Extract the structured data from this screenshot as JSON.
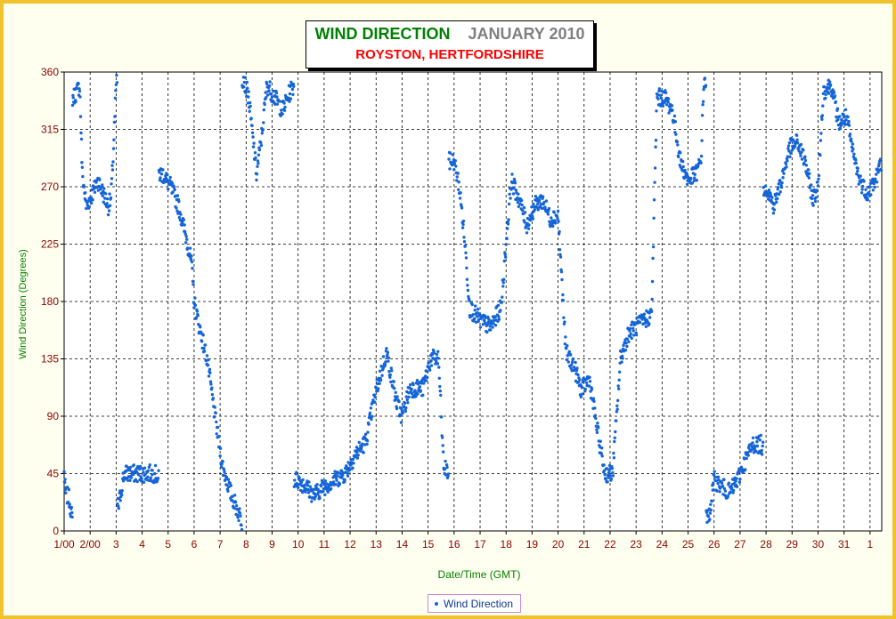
{
  "title": {
    "main": "WIND DIRECTION",
    "period": "JANUARY 2010",
    "location": "ROYSTON, HERTFORDSHIRE"
  },
  "colors": {
    "frame": "#f2c12e",
    "background": "#fffff0",
    "series": "#1565d8",
    "axis_text": "#8b0000",
    "title_green": "#008000",
    "title_gray": "#808080",
    "title_red": "#ff0000"
  },
  "chart_data": {
    "type": "scatter",
    "title": "WIND DIRECTION",
    "xlabel": "Date/Time (GMT)",
    "ylabel": "Wind Direction (Degrees)",
    "ylim": [
      0,
      360
    ],
    "xlim": [
      0,
      31.45
    ],
    "grid": true,
    "legend": "bottom",
    "y_ticks": [
      "0",
      "45",
      "90",
      "135",
      "180",
      "225",
      "270",
      "315",
      "360"
    ],
    "x_ticks": [
      "1/00",
      "2/00",
      "3",
      "4",
      "5",
      "6",
      "7",
      "8",
      "9",
      "10",
      "11",
      "12",
      "13",
      "14",
      "15",
      "16",
      "17",
      "18",
      "19",
      "20",
      "21",
      "22",
      "23",
      "24",
      "25",
      "26",
      "27",
      "28",
      "29",
      "30",
      "31",
      "1"
    ],
    "x_unit": "days since 1 Jan 2010 00:00",
    "series": [
      {
        "name": "Wind Direction",
        "trend": [
          [
            0.0,
            45
          ],
          [
            0.05,
            30
          ],
          [
            0.2,
            25
          ],
          [
            0.3,
            10
          ],
          [
            0.35,
            340
          ],
          [
            0.5,
            345
          ],
          [
            0.6,
            350
          ],
          [
            0.7,
            280
          ],
          [
            0.85,
            255
          ],
          [
            1.1,
            265
          ],
          [
            1.3,
            275
          ],
          [
            1.5,
            265
          ],
          [
            1.7,
            255
          ],
          [
            1.8,
            260
          ],
          [
            1.9,
            300
          ],
          [
            2.0,
            350
          ],
          [
            2.1,
            20
          ],
          [
            2.3,
            45
          ],
          [
            2.6,
            45
          ],
          [
            3.0,
            45
          ],
          [
            3.3,
            45
          ],
          [
            3.5,
            45
          ],
          [
            3.8,
            280
          ],
          [
            4.1,
            270
          ],
          [
            4.4,
            255
          ],
          [
            4.7,
            230
          ],
          [
            4.9,
            210
          ],
          [
            5.0,
            180
          ],
          [
            5.2,
            160
          ],
          [
            5.5,
            135
          ],
          [
            5.8,
            90
          ],
          [
            6.1,
            50
          ],
          [
            6.4,
            30
          ],
          [
            6.8,
            10
          ],
          [
            6.9,
            355
          ],
          [
            7.1,
            340
          ],
          [
            7.4,
            280
          ],
          [
            7.6,
            310
          ],
          [
            7.8,
            350
          ],
          [
            8.1,
            340
          ],
          [
            8.4,
            330
          ],
          [
            8.7,
            345
          ],
          [
            9.0,
            40
          ],
          [
            9.3,
            35
          ],
          [
            9.6,
            28
          ],
          [
            10.0,
            35
          ],
          [
            10.4,
            40
          ],
          [
            10.8,
            45
          ],
          [
            11.2,
            60
          ],
          [
            11.6,
            70
          ],
          [
            12.0,
            110
          ],
          [
            12.4,
            140
          ],
          [
            12.8,
            100
          ],
          [
            13.0,
            90
          ],
          [
            13.3,
            112
          ],
          [
            13.8,
            112
          ],
          [
            14.1,
            135
          ],
          [
            14.4,
            135
          ],
          [
            14.6,
            50
          ],
          [
            15.0,
            290
          ],
          [
            15.2,
            270
          ],
          [
            15.4,
            230
          ],
          [
            15.6,
            175
          ],
          [
            16.0,
            165
          ],
          [
            16.4,
            160
          ],
          [
            16.8,
            175
          ],
          [
            17.2,
            275
          ],
          [
            17.5,
            260
          ],
          [
            17.8,
            240
          ],
          [
            18.1,
            255
          ],
          [
            18.4,
            260
          ],
          [
            18.7,
            245
          ],
          [
            19.0,
            248
          ],
          [
            19.3,
            140
          ],
          [
            19.6,
            130
          ],
          [
            19.9,
            110
          ],
          [
            20.2,
            120
          ],
          [
            20.5,
            80
          ],
          [
            20.8,
            45
          ],
          [
            21.1,
            45
          ],
          [
            21.4,
            135
          ],
          [
            21.7,
            155
          ],
          [
            22.0,
            160
          ],
          [
            22.3,
            165
          ],
          [
            22.6,
            170
          ],
          [
            22.8,
            340
          ],
          [
            23.1,
            340
          ],
          [
            23.4,
            330
          ],
          [
            23.7,
            290
          ],
          [
            24.0,
            275
          ],
          [
            24.3,
            280
          ],
          [
            24.5,
            290
          ],
          [
            24.6,
            350
          ],
          [
            24.8,
            10
          ],
          [
            25.0,
            40
          ],
          [
            25.3,
            35
          ],
          [
            25.6,
            30
          ],
          [
            25.9,
            40
          ],
          [
            26.2,
            55
          ],
          [
            26.5,
            68
          ],
          [
            26.8,
            68
          ],
          [
            27.0,
            270
          ],
          [
            27.3,
            255
          ],
          [
            27.6,
            275
          ],
          [
            27.9,
            300
          ],
          [
            28.2,
            305
          ],
          [
            28.5,
            290
          ],
          [
            28.8,
            260
          ],
          [
            29.0,
            270
          ],
          [
            29.2,
            345
          ],
          [
            29.5,
            350
          ],
          [
            29.8,
            320
          ],
          [
            30.1,
            325
          ],
          [
            30.3,
            300
          ],
          [
            30.6,
            275
          ],
          [
            30.9,
            265
          ],
          [
            31.2,
            275
          ],
          [
            31.45,
            290
          ]
        ]
      }
    ]
  }
}
